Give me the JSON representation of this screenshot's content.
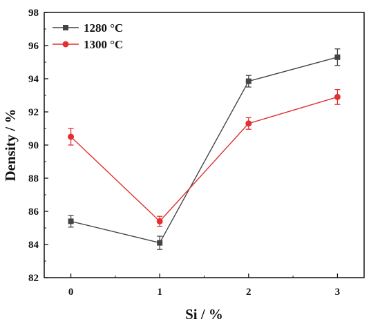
{
  "chart_data": {
    "type": "line",
    "x": [
      0,
      1,
      2,
      3
    ],
    "xlabel": "Si / %",
    "ylabel": "Density / %",
    "xlim": [
      -0.3,
      3.3
    ],
    "ylim": [
      82,
      98
    ],
    "xticks": [
      "0",
      "1",
      "2",
      "3"
    ],
    "yticks": [
      "82",
      "84",
      "86",
      "88",
      "90",
      "92",
      "94",
      "96",
      "98"
    ],
    "grid": false,
    "legend_position": "top-left",
    "series": [
      {
        "name": "1280 °C",
        "color": "#444444",
        "marker": "square",
        "values": [
          85.4,
          84.1,
          93.85,
          95.3
        ],
        "errors": [
          0.35,
          0.4,
          0.35,
          0.5
        ]
      },
      {
        "name": "1300 °C",
        "color": "#e03030",
        "marker": "circle",
        "values": [
          90.5,
          85.4,
          91.3,
          92.9
        ],
        "errors": [
          0.5,
          0.3,
          0.35,
          0.45
        ]
      }
    ]
  }
}
